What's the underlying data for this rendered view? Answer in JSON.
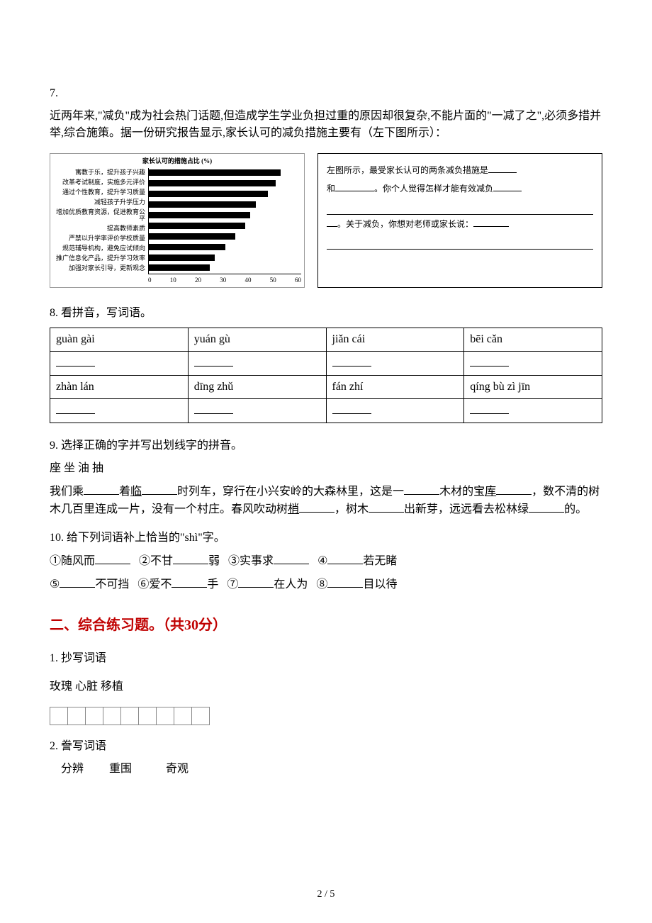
{
  "q7": {
    "number": "7.",
    "text": "近两年来,\"减负\"成为社会热门话题,但造成学生学业负担过重的原因却很复杂,不能片面的\"一减了之\",必须多措并举,综合施策。据一份研究报告显示,家长认可的减负措施主要有（左下图所示）："
  },
  "chart": {
    "title": "家长认可的措施占比 (%)",
    "categories": [
      "寓教于乐，提升孩子兴趣",
      "改革考试制度，实施多元评价",
      "通过个性教育，提升学习质量",
      "减轻孩子升学压力",
      "增加优质教育资源，促进教育公平",
      "提高教师素质",
      "严禁以升学率评价学校质量",
      "规范辅导机构，避免应试倾向",
      "推广信息化产品，提升学习效率",
      "加强对家长引导，更新观念"
    ],
    "values": [
      52,
      50,
      47,
      42,
      40,
      38,
      34,
      30,
      26,
      24
    ],
    "xmax": 60,
    "xticks": [
      "0",
      "10",
      "20",
      "30",
      "40",
      "50",
      "60"
    ],
    "bar_color": "#000000",
    "background_color": "#ffffff"
  },
  "promptBox": {
    "line1_a": "左图所示，最受家长认可的两条减负措施是",
    "line1_b": "和",
    "line1_c": "。你个人觉得怎样才能有效减负",
    "line2": "。关于减负，你想对老师或家长说：",
    "blank": ""
  },
  "q8": {
    "heading": "8. 看拼音，写词语。",
    "row1": [
      "guàn gài",
      "yuán gù",
      "jiǎn cái",
      "bēi cǎn"
    ],
    "row2": [
      "zhàn  lán",
      "dīng zhǔ",
      "fán  zhí",
      "qíng bù zì jīn"
    ]
  },
  "q9": {
    "heading": "9. 选择正确的字并写出划线字的拼音。",
    "choices": "座   坐   油   抽",
    "t1": "我们乘",
    "t2": "着",
    "u1": "临",
    "t3": "时列车，穿行在小兴安岭的大森林里，这是一",
    "t4": "木材的宝",
    "u2": "库",
    "t5": "，数不清的树木几百里连成一片，没有一个村庄。春风吹动树",
    "u3": "梢",
    "t6": "，树木",
    "t7": "出新芽，远远看去松林绿",
    "t8": "的。"
  },
  "q10": {
    "heading": "10. 给下列词语补上恰当的\"shì\"字。",
    "items": {
      "1a": "①随风而",
      "1b": "",
      "2a": "②不甘",
      "2b": "弱",
      "3a": "③实事求",
      "3b": "",
      "4a": "④",
      "4b": "若无睹",
      "5a": "⑤",
      "5b": "不可挡",
      "6a": "⑥爱不",
      "6b": "手",
      "7a": "⑦",
      "7b": "在人为",
      "8a": "⑧",
      "8b": "目以待"
    }
  },
  "section2": {
    "title": "二、综合练习题。（共30分）"
  },
  "s2q1": {
    "heading": "1. 抄写词语",
    "words": "玫瑰  心脏  移植",
    "cell_count": 9
  },
  "s2q2": {
    "heading": "2. 誊写词语",
    "words": "    分辨         重围            奇观"
  },
  "pagenum": "2 / 5"
}
